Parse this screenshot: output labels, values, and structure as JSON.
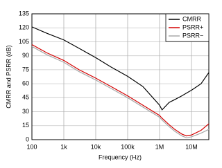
{
  "chart_data": {
    "type": "line",
    "x_label": "Frequency (Hz)",
    "y_label": "CMRR and PSRR (dB)",
    "x": [
      100,
      300,
      1000,
      3000,
      10000,
      30000,
      100000,
      300000,
      1000000,
      1200000,
      2000000,
      3000000,
      5000000,
      7000000,
      10000000,
      20000000,
      35000000
    ],
    "series": [
      {
        "name": "CMRR",
        "color": "#000000",
        "values": [
          121,
          114,
          107,
          98,
          88,
          78,
          68,
          57,
          37,
          32,
          40,
          43,
          47,
          50,
          53,
          60,
          72
        ]
      },
      {
        "name": "PSRR+",
        "color": "#d40000",
        "values": [
          102,
          93,
          85,
          75,
          66,
          57,
          47,
          37,
          26,
          23,
          16,
          11,
          6,
          4,
          5,
          10,
          17
        ]
      },
      {
        "name": "PSRR−",
        "color": "#a8a8a8",
        "values": [
          100,
          91,
          83,
          73,
          64,
          55,
          45,
          35,
          24,
          21,
          14,
          9,
          4,
          2,
          3,
          7,
          11
        ]
      }
    ],
    "xscale": "log",
    "xlim": [
      100,
      35000000
    ],
    "xticks": [
      {
        "value": 100,
        "label": "100"
      },
      {
        "value": 1000,
        "label": "1k"
      },
      {
        "value": 10000,
        "label": "10k"
      },
      {
        "value": 100000,
        "label": "100k"
      },
      {
        "value": 1000000,
        "label": "1M"
      },
      {
        "value": 10000000,
        "label": "10M"
      }
    ],
    "ylim": [
      0,
      135
    ],
    "yticks": [
      0,
      15,
      30,
      45,
      60,
      75,
      90,
      105,
      120,
      135
    ],
    "grid": true,
    "legend": "top-right"
  }
}
